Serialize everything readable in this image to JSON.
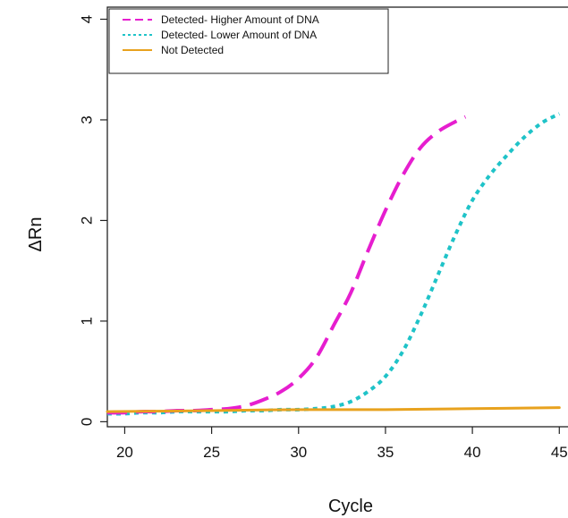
{
  "chart_data": {
    "type": "line",
    "xlabel": "Cycle",
    "ylabel": "ΔRn",
    "xlim": [
      19,
      45.5
    ],
    "ylim": [
      -0.05,
      4.12
    ],
    "xticks": [
      20,
      25,
      30,
      35,
      40,
      45
    ],
    "yticks": [
      0,
      1,
      2,
      3,
      4
    ],
    "grid": false,
    "legend_position": "top-left",
    "series": [
      {
        "name": "Detected- Higher Amount of DNA",
        "color": "#E61ECF",
        "style": "dashed",
        "x": [
          19,
          20,
          21,
          22,
          23,
          24,
          25,
          26,
          27,
          28,
          29,
          30,
          31,
          32,
          33,
          34,
          35,
          36,
          37,
          38,
          39,
          39.6
        ],
        "y": [
          0.09,
          0.09,
          0.1,
          0.1,
          0.11,
          0.11,
          0.12,
          0.13,
          0.16,
          0.22,
          0.3,
          0.43,
          0.63,
          0.95,
          1.28,
          1.7,
          2.1,
          2.45,
          2.72,
          2.88,
          2.98,
          3.03
        ]
      },
      {
        "name": "Detected- Lower Amount of DNA",
        "color": "#1FC3C8",
        "style": "dotted",
        "x": [
          19,
          20,
          21,
          22,
          23,
          24,
          25,
          26,
          27,
          28,
          29,
          30,
          31,
          32,
          33,
          34,
          35,
          36,
          37,
          38,
          39,
          40,
          41,
          42,
          43,
          44,
          45
        ],
        "y": [
          0.08,
          0.08,
          0.09,
          0.09,
          0.1,
          0.1,
          0.1,
          0.1,
          0.11,
          0.11,
          0.12,
          0.12,
          0.13,
          0.15,
          0.2,
          0.3,
          0.45,
          0.7,
          1.05,
          1.45,
          1.85,
          2.2,
          2.45,
          2.65,
          2.83,
          2.97,
          3.06
        ]
      },
      {
        "name": "Not Detected",
        "color": "#E8A21E",
        "style": "solid",
        "x": [
          19,
          25,
          30,
          35,
          40,
          45
        ],
        "y": [
          0.1,
          0.11,
          0.12,
          0.12,
          0.13,
          0.14
        ]
      }
    ]
  }
}
